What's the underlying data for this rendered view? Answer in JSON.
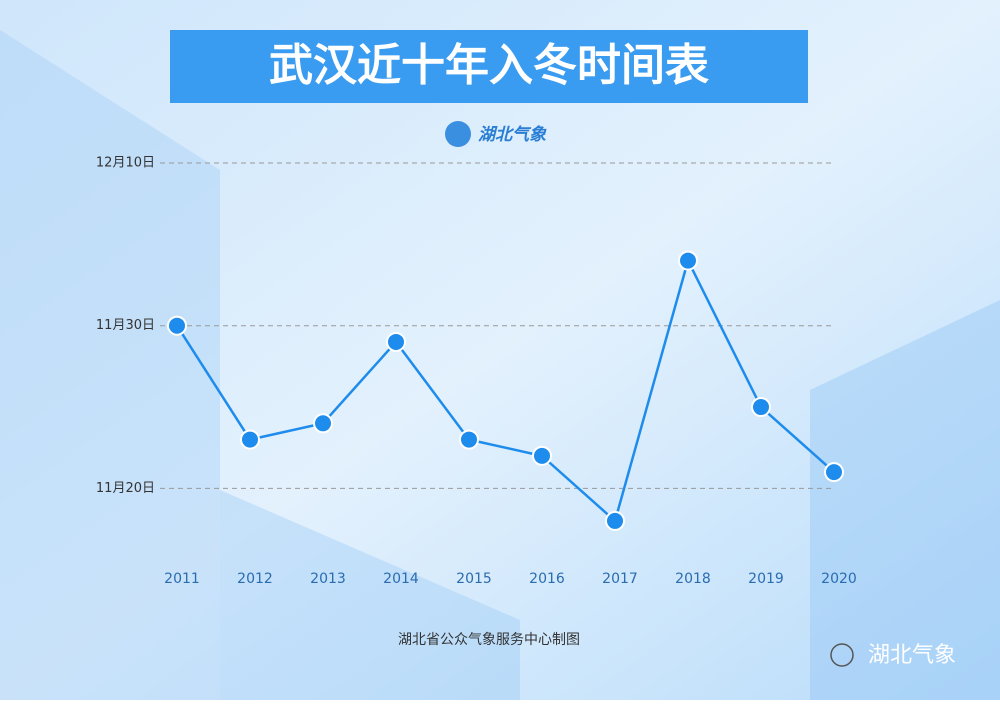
{
  "chart_data": {
    "type": "line",
    "title": "武汉近十年入冬时间表",
    "logo": "湖北气象",
    "source": "湖北省公众气象服务中心制图",
    "watermark": "湖北气象",
    "categories": [
      "2011",
      "2012",
      "2013",
      "2014",
      "2015",
      "2016",
      "2017",
      "2018",
      "2019",
      "2020"
    ],
    "series": [
      {
        "color": "#1e8cec",
        "values": [
          30,
          23,
          24,
          29,
          23,
          22,
          18,
          34,
          25,
          21
        ]
      }
    ],
    "ylim": [
      14,
      40
    ],
    "yticks": [
      {
        "value": 20,
        "label": "11月20日"
      },
      {
        "value": 30,
        "label": "11月30日"
      },
      {
        "value": 40,
        "label": "12月10日"
      }
    ],
    "grid": true
  }
}
